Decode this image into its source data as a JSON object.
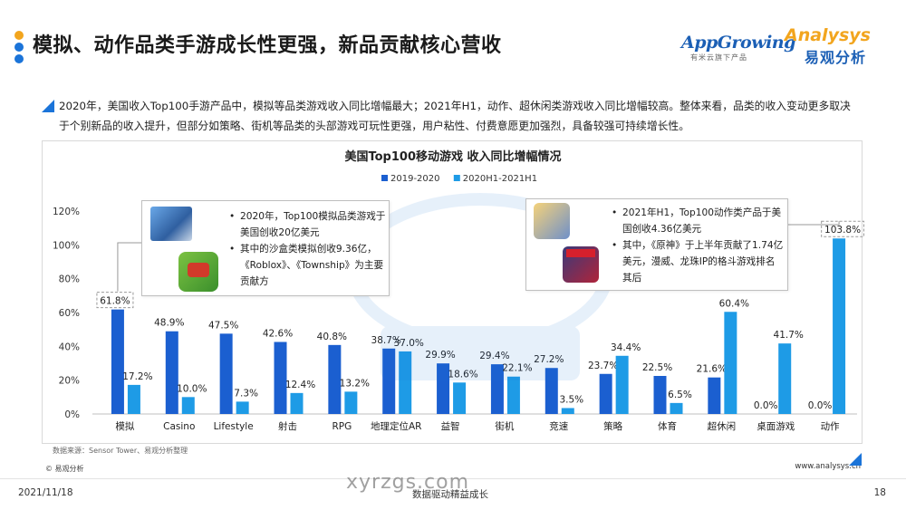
{
  "header": {
    "title": "模拟、动作品类手游成长性更强，新品贡献核心营收",
    "dot_colors": [
      "#f2a51e",
      "#1b74d9",
      "#1b74d9"
    ]
  },
  "logos": {
    "appgrowing": {
      "name": "AppGrowing",
      "sub": "有米云旗下产品"
    },
    "analysys": {
      "name": "Analysys",
      "cn": "易观分析"
    }
  },
  "intro": {
    "text": "2020年，美国收入Top100手游产品中，模拟等品类游戏收入同比增幅最大；2021年H1，动作、超休闲类游戏收入同比增幅较高。整体来看，品类的收入变动更多取决于个别新品的收入提升，但部分如策略、街机等品类的头部游戏可玩性更强，用户粘性、付费意愿更加强烈，具备较强可持续增长性。"
  },
  "chart_data": {
    "type": "bar",
    "title": "美国Top100移动游戏 收入同比增幅情况",
    "categories": [
      "模拟",
      "Casino",
      "Lifestyle",
      "射击",
      "RPG",
      "地理定位AR",
      "益智",
      "街机",
      "竞速",
      "策略",
      "体育",
      "超休闲",
      "桌面游戏",
      "动作"
    ],
    "series": [
      {
        "name": "2019-2020",
        "color": "#1b5fd0",
        "values": [
          61.8,
          48.9,
          47.5,
          42.6,
          40.8,
          38.7,
          29.9,
          29.4,
          27.2,
          23.7,
          22.5,
          21.6,
          0.0,
          0.0
        ]
      },
      {
        "name": "2020H1-2021H1",
        "color": "#1e9be6",
        "values": [
          17.2,
          10.0,
          7.3,
          12.4,
          13.2,
          37.0,
          18.6,
          22.1,
          3.5,
          34.4,
          6.5,
          60.4,
          41.7,
          103.8
        ]
      }
    ],
    "yticks": [
      "0%",
      "20%",
      "40%",
      "60%",
      "80%",
      "100%",
      "120%"
    ],
    "ylim": [
      0,
      120
    ],
    "legend_position": "top",
    "grid": false,
    "highlight_labels": [
      "61.8%",
      "103.8%"
    ]
  },
  "callouts": {
    "left": {
      "bullets": [
        "2020年，Top100模拟品类游戏于美国创收20亿美元",
        "其中的沙盒类模拟创收9.36亿，《Roblox》、《Township》为主要贡献方"
      ]
    },
    "right": {
      "bullets": [
        "2021年H1，Top100动作类产品于美国创收4.36亿美元",
        "其中，《原神》于上半年贡献了1.74亿美元，漫威、龙珠IP的格斗游戏排名其后"
      ]
    }
  },
  "footer": {
    "source": "数据来源：Sensor Tower、易观分析整理",
    "copyright": "© 易观分析",
    "site": "www.analysys.cn",
    "date": "2021/11/18",
    "slogan": "数据驱动精益成长",
    "page": "18",
    "bottom_watermark": "xyrzgs.com"
  }
}
